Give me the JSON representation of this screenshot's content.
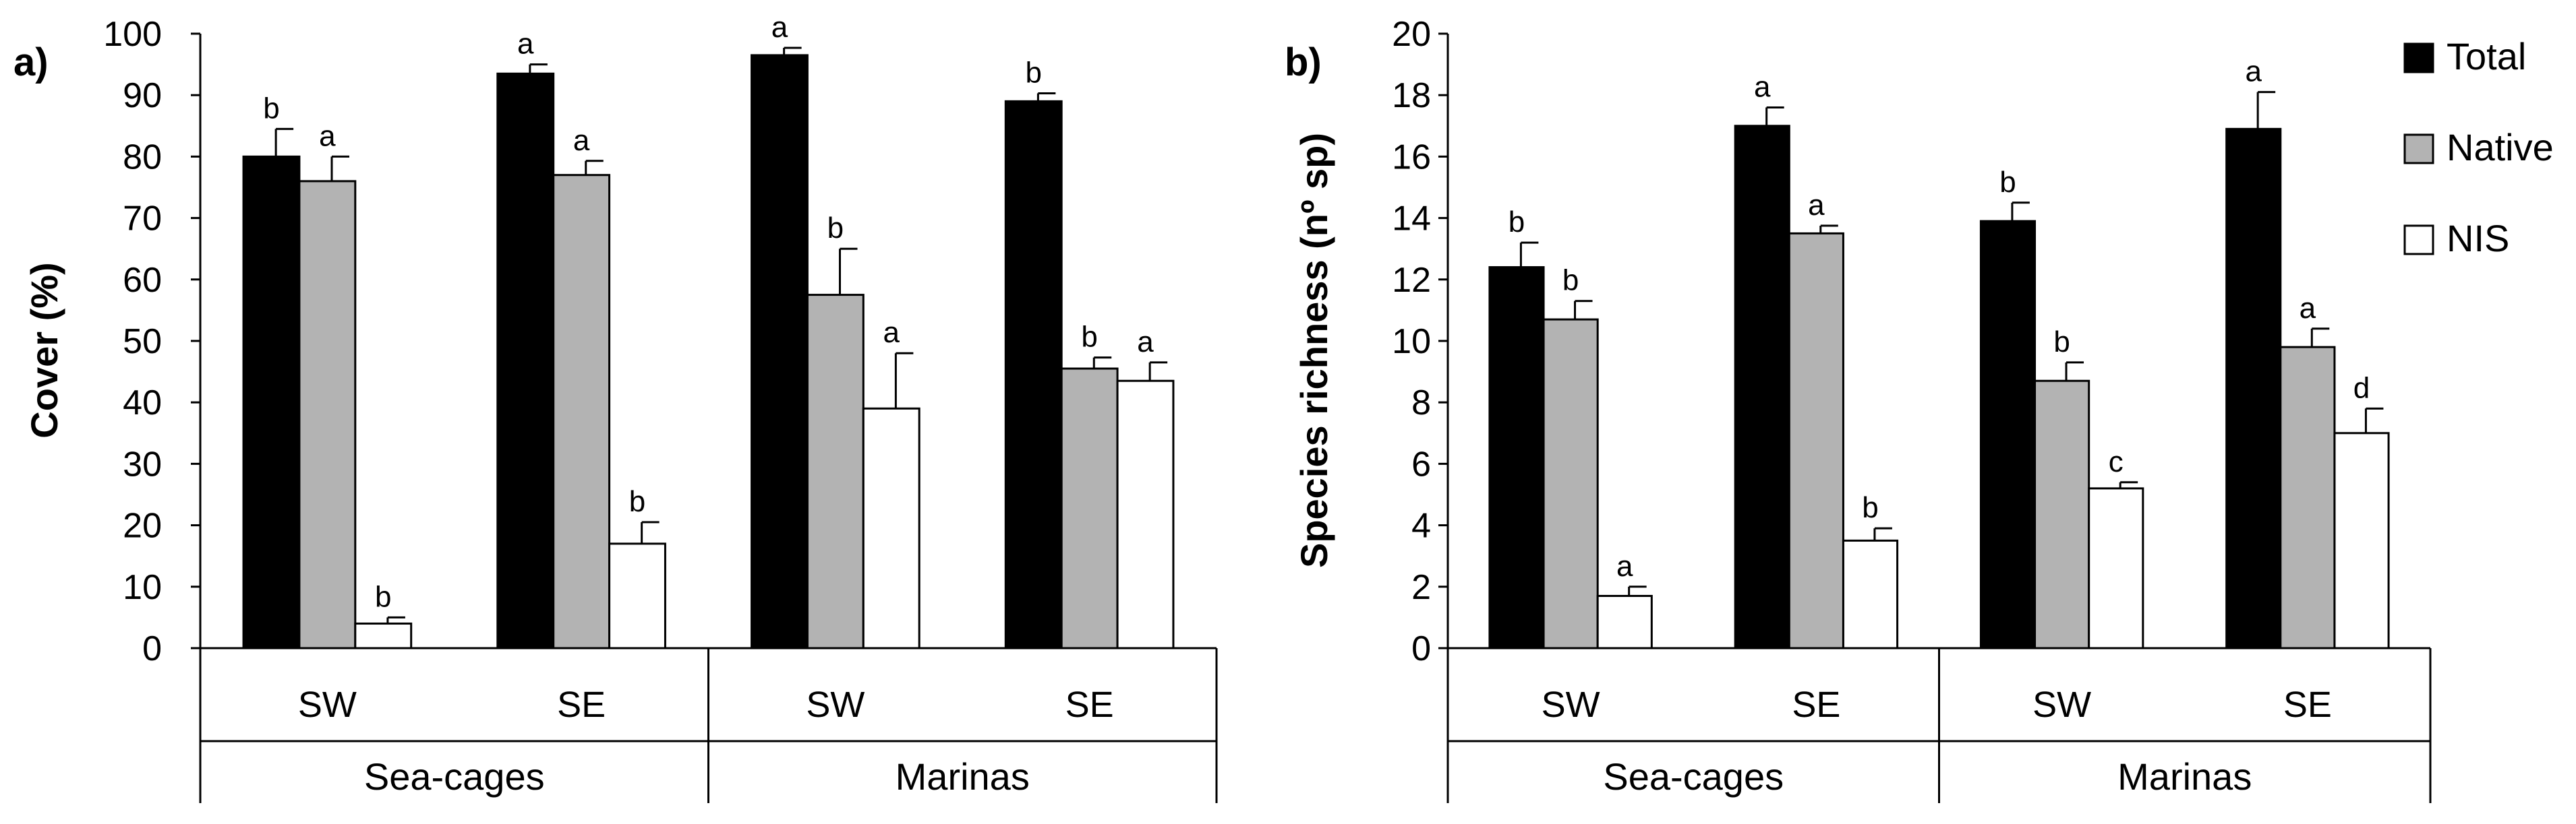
{
  "chart_data": [
    {
      "type": "bar",
      "panel_label": "a)",
      "ylabel": "Cover (%)",
      "xlabel": "",
      "ylim": [
        0,
        100
      ],
      "yticks": [
        0,
        10,
        20,
        30,
        40,
        50,
        60,
        70,
        80,
        90,
        100
      ],
      "groups": [
        "Sea-cages",
        "Marinas"
      ],
      "categories": [
        "SW",
        "SE",
        "SW",
        "SE"
      ],
      "series": [
        {
          "name": "Total",
          "values": [
            80,
            93.5,
            96.5,
            89
          ],
          "errors": [
            4.5,
            1.5,
            1.2,
            1.3
          ],
          "letters": [
            "b",
            "a",
            "a",
            "b"
          ]
        },
        {
          "name": "Native",
          "values": [
            76,
            77,
            57.5,
            45.5
          ],
          "errors": [
            4,
            2.3,
            7.5,
            1.8
          ],
          "letters": [
            "a",
            "a",
            "b",
            "b"
          ]
        },
        {
          "name": "NIS",
          "values": [
            4,
            17,
            39,
            43.5
          ],
          "errors": [
            1,
            3.5,
            9,
            3
          ],
          "letters": [
            "b",
            "b",
            "a",
            "a"
          ]
        }
      ]
    },
    {
      "type": "bar",
      "panel_label": "b)",
      "ylabel": "Species richness (nº sp)",
      "xlabel": "",
      "ylim": [
        0,
        20
      ],
      "yticks": [
        0,
        2,
        4,
        6,
        8,
        10,
        12,
        14,
        16,
        18,
        20
      ],
      "groups": [
        "Sea-cages",
        "Marinas"
      ],
      "categories": [
        "SW",
        "SE",
        "SW",
        "SE"
      ],
      "series": [
        {
          "name": "Total",
          "values": [
            12.4,
            17,
            13.9,
            16.9
          ],
          "errors": [
            0.8,
            0.6,
            0.6,
            1.2
          ],
          "letters": [
            "b",
            "a",
            "b",
            "a"
          ]
        },
        {
          "name": "Native",
          "values": [
            10.7,
            13.5,
            8.7,
            9.8
          ],
          "errors": [
            0.6,
            0.25,
            0.6,
            0.6
          ],
          "letters": [
            "b",
            "a",
            "b",
            "a"
          ]
        },
        {
          "name": "NIS",
          "values": [
            1.7,
            3.5,
            5.2,
            7
          ],
          "errors": [
            0.3,
            0.4,
            0.2,
            0.8
          ],
          "letters": [
            "a",
            "b",
            "c",
            "d"
          ]
        }
      ]
    }
  ],
  "legend": {
    "placement": "top-right",
    "items": [
      {
        "name": "Total",
        "color": "#000000"
      },
      {
        "name": "Native",
        "color": "#b3b3b3"
      },
      {
        "name": "NIS",
        "color": "#ffffff"
      }
    ]
  }
}
